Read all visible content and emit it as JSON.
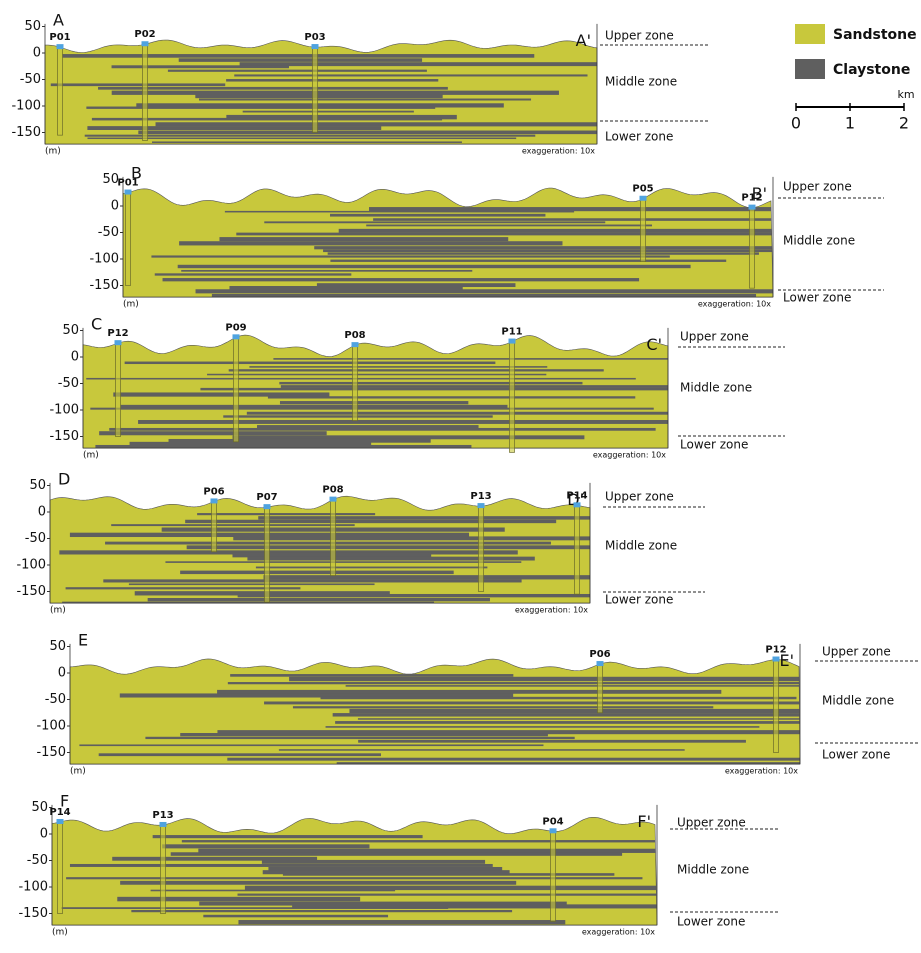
{
  "legend": [
    {
      "label": "Sandstone",
      "color": "#c8c83c"
    },
    {
      "label": "Claystone",
      "color": "#5f5f5f"
    }
  ],
  "scale_bar": {
    "ticks": [
      0,
      1,
      2
    ],
    "unit": "km"
  },
  "panels": [
    {
      "start": "A",
      "end": "A'",
      "wells": [
        "P01",
        "P02",
        "P03"
      ],
      "yticks": [
        50,
        0,
        -50,
        -100,
        -150
      ],
      "unit": "(m)",
      "exaggeration": "exaggeration: 10x",
      "zones": [
        "Upper zone",
        "Middle zone",
        "Lower zone"
      ]
    },
    {
      "start": "B",
      "end": "B'",
      "wells": [
        "P01",
        "P05",
        "P12"
      ],
      "yticks": [
        50,
        0,
        -50,
        -100,
        -150
      ],
      "unit": "(m)",
      "exaggeration": "exaggeration: 10x",
      "zones": [
        "Upper zone",
        "Middle zone",
        "Lower zone"
      ]
    },
    {
      "start": "C",
      "end": "C'",
      "wells": [
        "P12",
        "P09",
        "P08",
        "P11"
      ],
      "yticks": [
        50,
        0,
        -50,
        -100,
        -150
      ],
      "unit": "(m)",
      "exaggeration": "exaggeration: 10x",
      "zones": [
        "Upper zone",
        "Middle zone",
        "Lower zone"
      ]
    },
    {
      "start": "D",
      "end": "D'",
      "wells": [
        "P06",
        "P07",
        "P08",
        "P13",
        "P14"
      ],
      "yticks": [
        50,
        0,
        -50,
        -100,
        -150
      ],
      "unit": "(m)",
      "exaggeration": "exaggeration: 10x",
      "zones": [
        "Upper zone",
        "Middle zone",
        "Lower zone"
      ]
    },
    {
      "start": "E",
      "end": "E'",
      "wells": [
        "P06",
        "P12"
      ],
      "yticks": [
        50,
        0,
        -50,
        -100,
        -150
      ],
      "unit": "(m)",
      "exaggeration": "exaggeration: 10x",
      "zones": [
        "Upper zone",
        "Middle zone",
        "Lower zone"
      ]
    },
    {
      "start": "F",
      "end": "F'",
      "wells": [
        "P14",
        "P13",
        "P04"
      ],
      "yticks": [
        50,
        0,
        -50,
        -100,
        -150
      ],
      "unit": "(m)",
      "exaggeration": "exaggeration: 10x",
      "zones": [
        "Upper zone",
        "Middle zone",
        "Lower zone"
      ]
    }
  ]
}
